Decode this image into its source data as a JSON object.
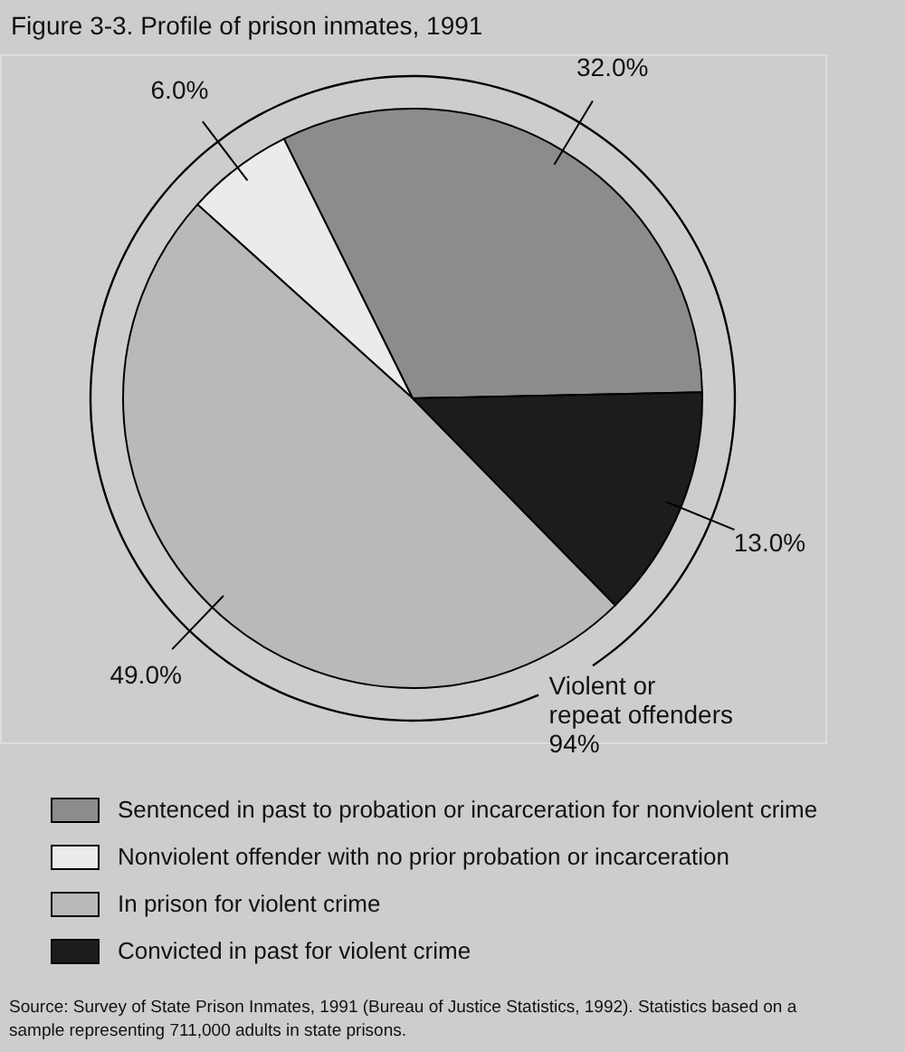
{
  "chart_data": {
    "type": "pie",
    "title": "Figure 3-3. Profile of prison inmates, 1991",
    "categories": [
      "Sentenced in past to probation or incarceration for nonviolent crime",
      "Nonviolent offender with no prior probation or incarceration",
      "In prison for violent crime",
      "Convicted in past for violent crime"
    ],
    "values": [
      32.0,
      6.0,
      49.0,
      13.0
    ],
    "colors": [
      "#8c8c8c",
      "#ebebeb",
      "#b9b9b9",
      "#1c1c1c"
    ],
    "value_labels": [
      "32.0%",
      "6.0%",
      "49.0%",
      "13.0%"
    ],
    "legend": "bottom",
    "annotations": [
      "Violent or repeat offenders 94%",
      "Source: Survey of State Prison Inmates, 1991 (Bureau of Justice Statistics, 1992). Statistics based on a sample representing 711,000 adults in state prisons."
    ]
  }
}
